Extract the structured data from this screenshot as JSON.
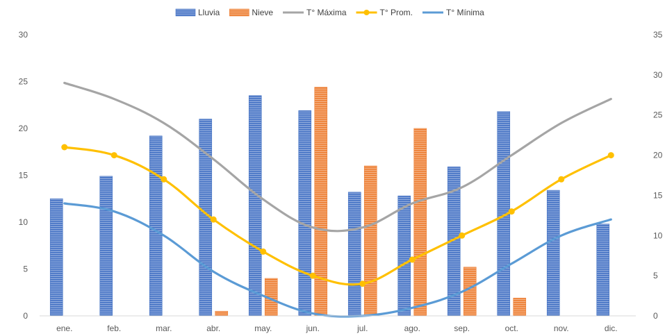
{
  "chart_data": {
    "type": "bar",
    "title": "",
    "xlabel": "",
    "ylabel": "",
    "ylabel_right": "",
    "categories": [
      "ene.",
      "feb.",
      "mar.",
      "abr.",
      "may.",
      "jun.",
      "jul.",
      "ago.",
      "sep.",
      "oct.",
      "nov.",
      "dic."
    ],
    "ylim": [
      0,
      30
    ],
    "y_ticks": [
      0,
      5,
      10,
      15,
      20,
      25,
      30
    ],
    "ylim_right": [
      0,
      35
    ],
    "y_ticks_right": [
      0,
      5,
      10,
      15,
      20,
      25,
      30,
      35
    ],
    "grid": false,
    "legend_position": "top",
    "bar_series": [
      {
        "name": "Lluvia",
        "axis": "left",
        "color": "#4472C4",
        "values": [
          12.5,
          14.9,
          19.2,
          21.0,
          23.5,
          21.9,
          13.2,
          12.8,
          15.9,
          21.8,
          13.4,
          9.8
        ]
      },
      {
        "name": "Nieve",
        "axis": "left",
        "color": "#ED7D31",
        "values": [
          0,
          0,
          0,
          0.5,
          4.0,
          24.4,
          16.0,
          20.0,
          5.2,
          1.9,
          0,
          0
        ]
      }
    ],
    "line_series": [
      {
        "name": "T° Máxima",
        "axis": "right",
        "color": "#A5A5A5",
        "markers": false,
        "values": [
          29,
          27,
          24,
          19.5,
          14.5,
          11,
          11,
          14,
          16,
          20,
          24,
          27
        ]
      },
      {
        "name": "T° Prom.",
        "axis": "right",
        "color": "#FFC000",
        "markers": true,
        "values": [
          21,
          20,
          17,
          12,
          8,
          5,
          4,
          7,
          10,
          13,
          17,
          20
        ]
      },
      {
        "name": "T° Mínima",
        "axis": "right",
        "color": "#5B9BD5",
        "markers": false,
        "values": [
          14,
          13,
          10,
          5.5,
          2.5,
          0.3,
          0,
          1,
          3,
          6.5,
          10,
          12
        ]
      }
    ]
  }
}
